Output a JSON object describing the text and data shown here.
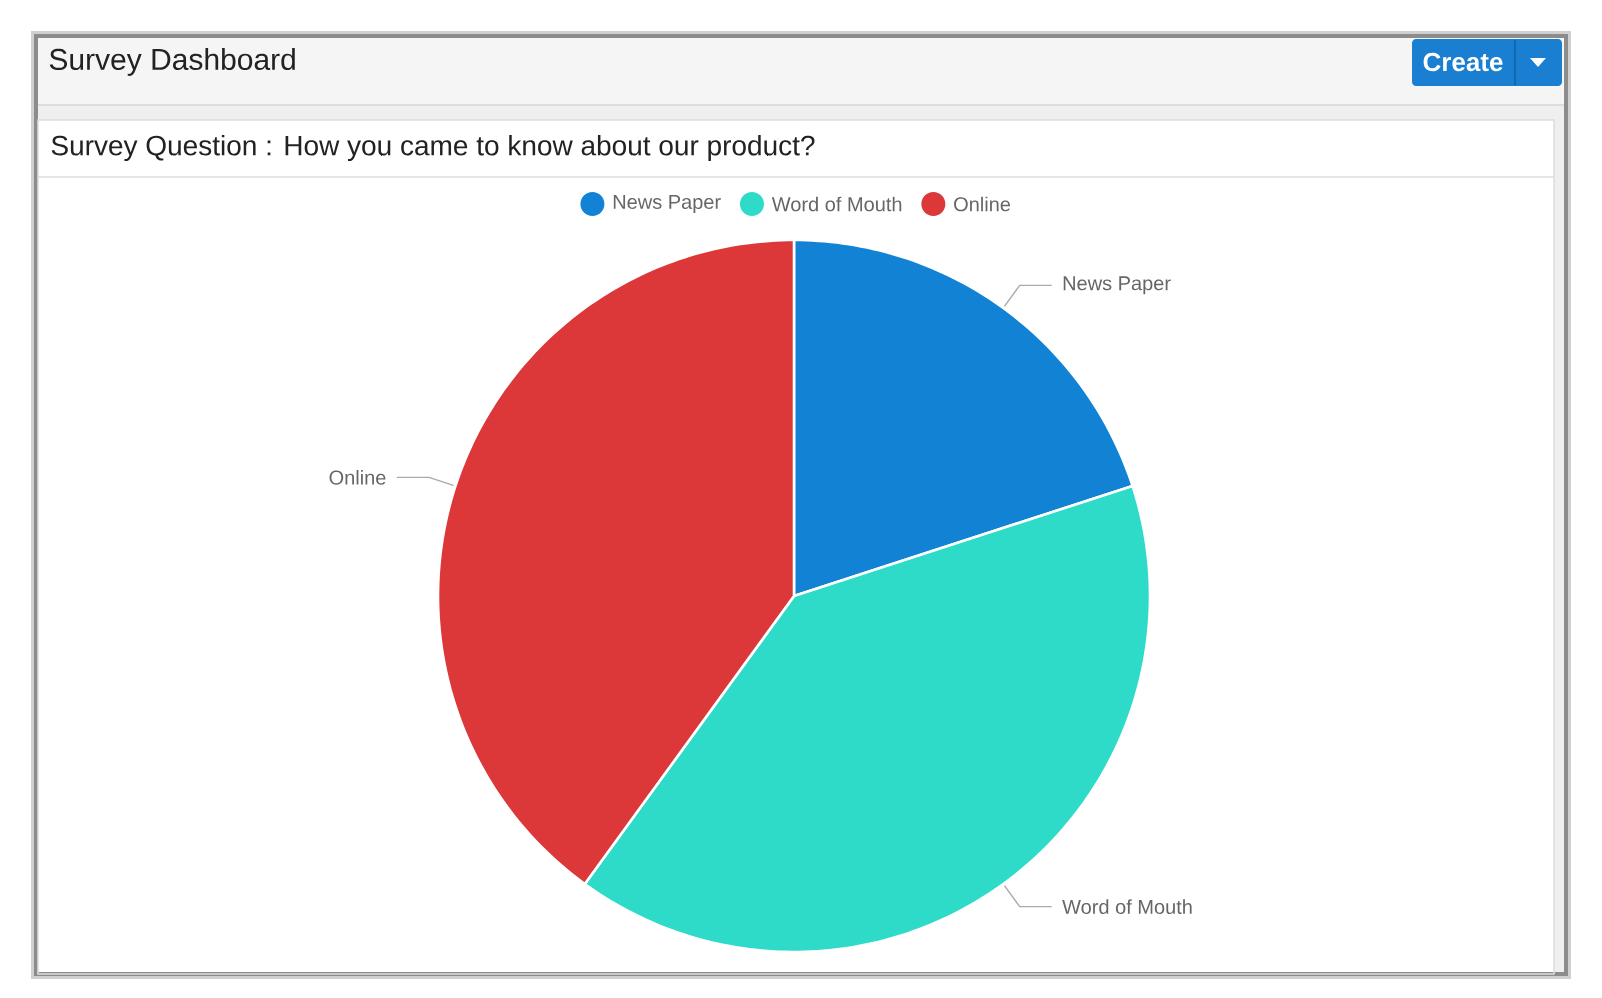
{
  "chart_data": {
    "type": "pie",
    "title": "Survey Dashboard",
    "subtitle": "Survey Question : How you came to know about our product?",
    "annotations": [
      "Create"
    ],
    "categories": [
      "News Paper",
      "Word of Mouth",
      "Online"
    ],
    "values": [
      20,
      40,
      40
    ],
    "colors": [
      "#1283d4",
      "#2edbc9",
      "#dc3739"
    ],
    "legend": "top"
  }
}
